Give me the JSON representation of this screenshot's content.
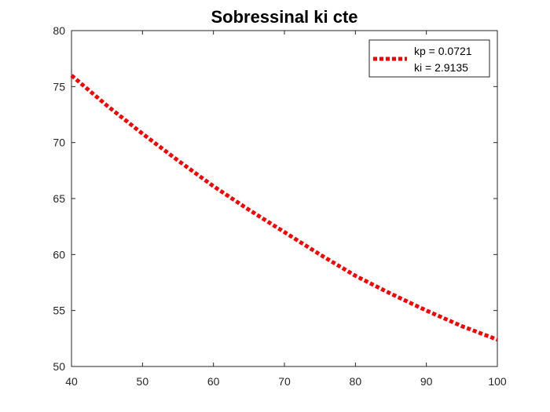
{
  "chart_data": {
    "type": "line",
    "title": "Sobressinal ki cte",
    "xlabel": "",
    "ylabel": "",
    "xlim": [
      40,
      100
    ],
    "ylim": [
      50,
      80
    ],
    "xticks": [
      40,
      50,
      60,
      70,
      80,
      90,
      100
    ],
    "yticks": [
      50,
      55,
      60,
      65,
      70,
      75,
      80
    ],
    "grid": false,
    "legend_position": "top-right",
    "legend_lines": [
      "kp = 0.0721",
      "ki = 2.9135"
    ],
    "series": [
      {
        "name": "kp = 0.0721 ki = 2.9135",
        "color": "#ff0000",
        "line_style": "dotted",
        "x": [
          40,
          45,
          50,
          55,
          60,
          65,
          70,
          75,
          80,
          85,
          90,
          95,
          100
        ],
        "y": [
          76.0,
          73.3,
          70.8,
          68.4,
          66.1,
          64.0,
          62.0,
          60.0,
          58.1,
          56.5,
          55.0,
          53.6,
          52.4
        ]
      }
    ]
  }
}
